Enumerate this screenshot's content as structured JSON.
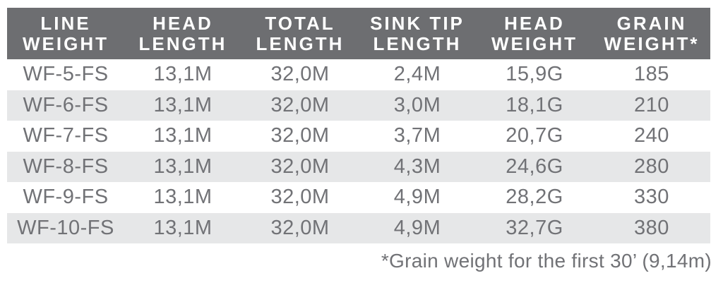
{
  "chart_data": {
    "type": "table",
    "columns": [
      {
        "line1": "LINE",
        "line2": "WEIGHT"
      },
      {
        "line1": "HEAD",
        "line2": "LENGTH"
      },
      {
        "line1": "TOTAL",
        "line2": "LENGTH"
      },
      {
        "line1": "SINK TIP",
        "line2": "LENGTH"
      },
      {
        "line1": "HEAD",
        "line2": "WEIGHT"
      },
      {
        "line1": "GRAIN",
        "line2": "WEIGHT*"
      }
    ],
    "rows": [
      [
        "WF-5-FS",
        "13,1M",
        "32,0M",
        "2,4M",
        "15,9G",
        "185"
      ],
      [
        "WF-6-FS",
        "13,1M",
        "32,0M",
        "3,0M",
        "18,1G",
        "210"
      ],
      [
        "WF-7-FS",
        "13,1M",
        "32,0M",
        "3,7M",
        "20,7G",
        "240"
      ],
      [
        "WF-8-FS",
        "13,1M",
        "32,0M",
        "4,3M",
        "24,6G",
        "280"
      ],
      [
        "WF-9-FS",
        "13,1M",
        "32,0M",
        "4,9M",
        "28,2G",
        "330"
      ],
      [
        "WF-10-FS",
        "13,1M",
        "32,0M",
        "4,9M",
        "32,7G",
        "380"
      ]
    ],
    "footnote": "*Grain weight for the first 30’ (9,14m)",
    "layout": {
      "alternating_rows": true,
      "header_position": "top"
    }
  },
  "colors": {
    "header_bg": "#6d6e71",
    "header_text": "#ffffff",
    "body_text": "#717276",
    "row_alt_bg": "#e6e7e8",
    "page_bg": "#ffffff"
  }
}
